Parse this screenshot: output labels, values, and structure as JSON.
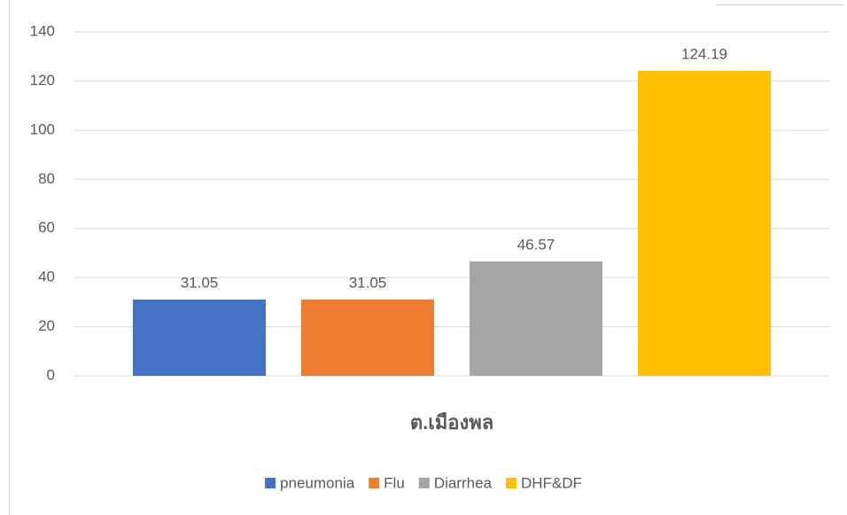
{
  "chart_data": {
    "type": "bar",
    "categories": [
      "ต.เมืองพล"
    ],
    "series": [
      {
        "name": "pneumonia",
        "color": "#4472c4",
        "values": [
          31.05
        ]
      },
      {
        "name": "Flu",
        "color": "#ed7d31",
        "values": [
          31.05
        ]
      },
      {
        "name": "Diarrhea",
        "color": "#a5a5a5",
        "values": [
          46.57
        ]
      },
      {
        "name": "DHF&DF",
        "color": "#ffc000",
        "values": [
          124.19
        ]
      }
    ],
    "ylim": [
      0,
      140
    ],
    "yticks": [
      0,
      20,
      40,
      60,
      80,
      100,
      120,
      140
    ],
    "grid": true,
    "legend": "bottom",
    "data_labels": true
  }
}
